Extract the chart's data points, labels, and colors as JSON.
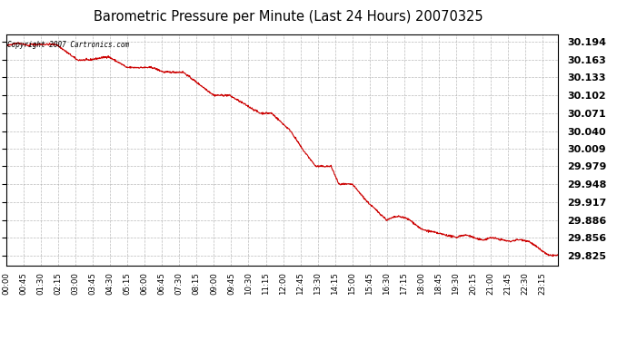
{
  "title": "Barometric Pressure per Minute (Last 24 Hours) 20070325",
  "copyright_text": "Copyright 2007 Cartronics.com",
  "line_color": "#cc0000",
  "bg_color": "#ffffff",
  "plot_bg_color": "#ffffff",
  "grid_color": "#aaaaaa",
  "grid_style": "--",
  "y_ticks": [
    29.825,
    29.856,
    29.886,
    29.917,
    29.948,
    29.979,
    30.009,
    30.04,
    30.071,
    30.102,
    30.133,
    30.163,
    30.194
  ],
  "y_min": 29.808,
  "y_max": 30.208,
  "x_tick_labels": [
    "00:00",
    "00:45",
    "01:30",
    "02:15",
    "03:00",
    "03:45",
    "04:30",
    "05:15",
    "06:00",
    "06:45",
    "07:30",
    "08:15",
    "09:00",
    "09:45",
    "10:30",
    "11:15",
    "12:00",
    "12:45",
    "13:30",
    "14:15",
    "15:00",
    "15:45",
    "16:30",
    "17:15",
    "18:00",
    "18:45",
    "19:30",
    "20:15",
    "21:00",
    "21:45",
    "22:30",
    "23:15"
  ]
}
